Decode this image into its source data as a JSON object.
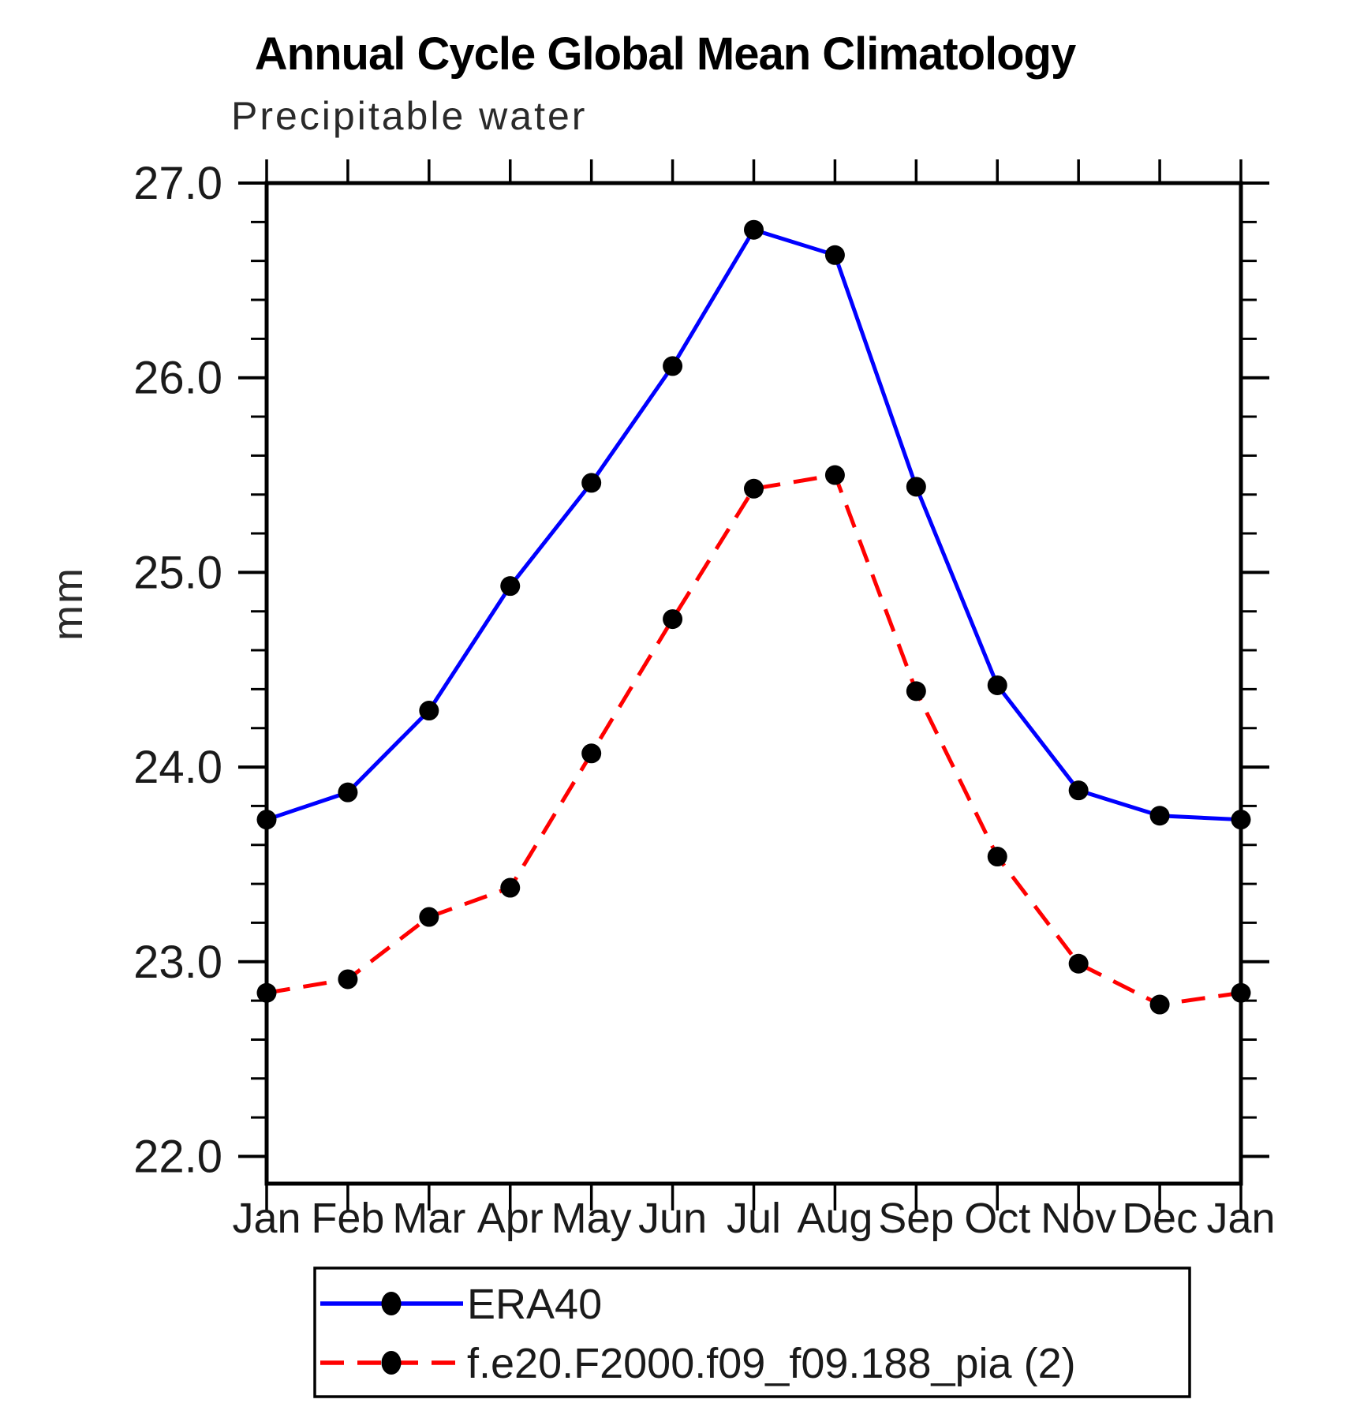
{
  "chart_data": {
    "type": "line",
    "title": "Annual Cycle Global Mean Climatology",
    "subtitle": "Precipitable water",
    "ylabel": "mm",
    "xlabel": "",
    "categories": [
      "Jan",
      "Feb",
      "Mar",
      "Apr",
      "May",
      "Jun",
      "Jul",
      "Aug",
      "Sep",
      "Oct",
      "Nov",
      "Dec",
      "Jan"
    ],
    "y_ticks": [
      22.0,
      23.0,
      24.0,
      25.0,
      26.0,
      27.0
    ],
    "y_tick_labels": [
      "22.0",
      "23.0",
      "24.0",
      "25.0",
      "26.0",
      "27.0"
    ],
    "ylim": [
      21.86,
      27.0
    ],
    "y_minor_step": 0.2,
    "grid": false,
    "legend_position": "bottom",
    "axis_color": "#000000",
    "series": [
      {
        "name": "ERA40",
        "line_color": "#0000ff",
        "line_style": "solid",
        "marker": "filled-circle",
        "marker_color": "#000000",
        "values": [
          23.73,
          23.87,
          24.29,
          24.93,
          25.46,
          26.06,
          26.76,
          26.63,
          25.44,
          24.42,
          23.88,
          23.75,
          23.73
        ]
      },
      {
        "name": "f.e20.F2000.f09_f09.188_pia (2)",
        "line_color": "#ff0000",
        "line_style": "dashed",
        "marker": "filled-circle",
        "marker_color": "#000000",
        "values": [
          22.84,
          22.91,
          23.23,
          23.38,
          24.07,
          24.76,
          25.43,
          25.5,
          24.39,
          23.54,
          22.99,
          22.78,
          22.84
        ]
      }
    ]
  }
}
